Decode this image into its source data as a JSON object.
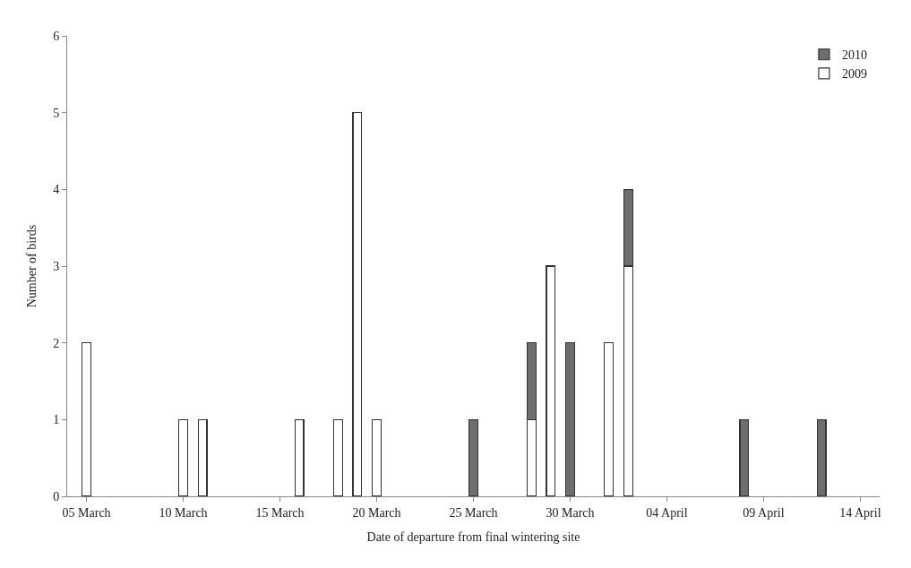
{
  "chart_data": {
    "type": "bar",
    "stacked": true,
    "xlabel": "Date of departure from final wintering site",
    "ylabel": "Number of birds",
    "x": [
      "--03-05",
      "--03-10",
      "--03-11",
      "--03-16",
      "--03-18",
      "--03-19",
      "--03-20",
      "--03-25",
      "--03-28",
      "--03-29",
      "--03-30",
      "--04-01",
      "--04-02",
      "--04-08",
      "--04-12"
    ],
    "series": [
      {
        "name": "2009",
        "color": "#ffffff",
        "values": [
          2,
          1,
          1,
          1,
          1,
          5,
          1,
          null,
          1,
          3,
          null,
          2,
          3,
          null,
          null
        ]
      },
      {
        "name": "2010",
        "color": "#6e6e6e",
        "values": [
          null,
          null,
          null,
          null,
          null,
          null,
          null,
          1,
          1,
          null,
          2,
          null,
          1,
          1,
          1
        ]
      }
    ],
    "xlim": [
      "--03-04",
      "--04-15"
    ],
    "xticks": [
      {
        "value": "--03-05",
        "label": "05 March"
      },
      {
        "value": "--03-10",
        "label": "10 March"
      },
      {
        "value": "--03-15",
        "label": "15 March"
      },
      {
        "value": "--03-20",
        "label": "20 March"
      },
      {
        "value": "--03-25",
        "label": "25 March"
      },
      {
        "value": "--03-30",
        "label": "30 March"
      },
      {
        "value": "--04-04",
        "label": "04 April"
      },
      {
        "value": "--04-09",
        "label": "09 April"
      },
      {
        "value": "--04-14",
        "label": "14 April"
      }
    ],
    "ylim": [
      0,
      6
    ],
    "yticks": [
      0,
      1,
      2,
      3,
      4,
      5,
      6
    ],
    "legend": "top right"
  }
}
